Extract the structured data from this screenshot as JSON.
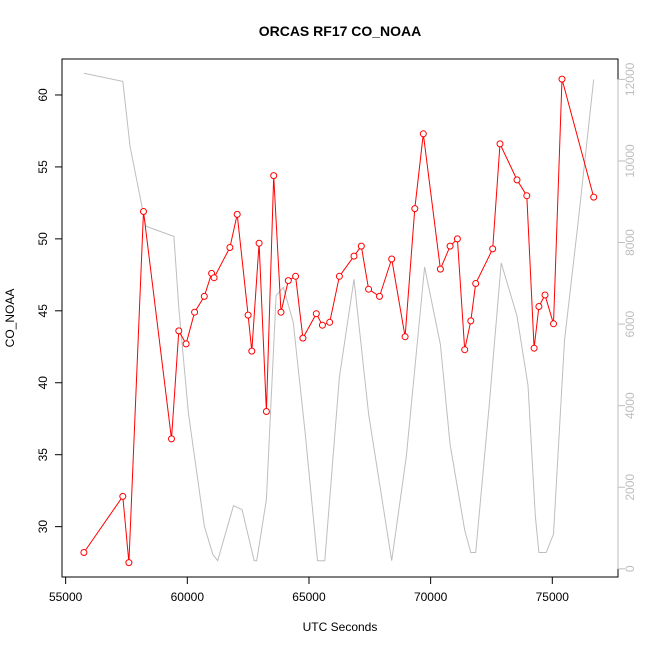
{
  "chart_data": {
    "type": "line",
    "title": "ORCAS RF17 CO_NOAA",
    "xlabel": "UTC Seconds",
    "ylabel": "CO_NOAA",
    "xlim": [
      54850,
      77700
    ],
    "ylim": [
      26.5,
      62.5
    ],
    "y2lim": [
      -200,
      12500
    ],
    "x_ticks": [
      55000,
      60000,
      65000,
      70000,
      75000
    ],
    "x_tick_labels": [
      "55000",
      "60000",
      "65000",
      "70000",
      "75000"
    ],
    "y_ticks": [
      30,
      35,
      40,
      45,
      50,
      55,
      60
    ],
    "y_tick_labels": [
      "30",
      "35",
      "40",
      "45",
      "50",
      "55",
      "60"
    ],
    "y2_ticks": [
      0,
      2000,
      4000,
      6000,
      8000,
      10000,
      12000
    ],
    "y2_tick_labels": [
      "0",
      "2000",
      "4000",
      "6000",
      "8000",
      "10000",
      "12000"
    ],
    "grid": false,
    "series": [
      {
        "axis": "left",
        "color": "#ff0000",
        "marker": "open-circle",
        "x": [
          55750,
          57350,
          57600,
          58200,
          59350,
          59650,
          59950,
          60300,
          60700,
          61000,
          61100,
          61750,
          62050,
          62500,
          62650,
          62950,
          63250,
          63550,
          63850,
          64150,
          64450,
          64750,
          65300,
          65550,
          65850,
          66250,
          66850,
          67150,
          67450,
          67900,
          68400,
          68950,
          69350,
          69700,
          70400,
          70800,
          71100,
          71400,
          71650,
          71850,
          72550,
          72850,
          73550,
          73950,
          74250,
          74450,
          74700,
          75050,
          75400,
          76700
        ],
        "y": [
          28.2,
          32.1,
          27.5,
          51.9,
          36.1,
          43.6,
          42.7,
          44.9,
          46.0,
          47.6,
          47.3,
          49.4,
          51.7,
          44.7,
          42.2,
          49.7,
          38.0,
          54.4,
          44.9,
          47.1,
          47.4,
          43.1,
          44.8,
          44.0,
          44.2,
          47.4,
          48.8,
          49.5,
          46.5,
          46.0,
          48.6,
          43.2,
          52.1,
          57.3,
          47.9,
          49.5,
          50.0,
          42.3,
          44.3,
          46.9,
          49.3,
          56.6,
          54.1,
          53.0,
          42.4,
          45.3,
          46.1,
          44.1,
          61.1,
          52.9
        ]
      },
      {
        "axis": "right",
        "color": "#bebebe",
        "marker": "none",
        "x": [
          55750,
          57350,
          57650,
          58300,
          59450,
          59650,
          60050,
          60700,
          61050,
          61250,
          61900,
          62250,
          62750,
          62850,
          63250,
          63650,
          63950,
          64350,
          64850,
          65350,
          65650,
          66250,
          66850,
          67450,
          67900,
          68400,
          69000,
          69750,
          70400,
          70800,
          71400,
          71650,
          71850,
          72400,
          72900,
          73550,
          74000,
          74300,
          74450,
          74750,
          75050,
          75500,
          76050,
          76700
        ],
        "y": [
          12150,
          11950,
          10350,
          8400,
          8150,
          6400,
          3800,
          1050,
          350,
          200,
          1550,
          1450,
          200,
          200,
          1700,
          6700,
          6900,
          6050,
          3300,
          200,
          200,
          4700,
          7100,
          3800,
          2100,
          200,
          2750,
          7400,
          5500,
          3050,
          950,
          400,
          400,
          3950,
          7500,
          6200,
          4500,
          1300,
          400,
          400,
          850,
          5600,
          8450,
          12000
        ]
      }
    ]
  }
}
